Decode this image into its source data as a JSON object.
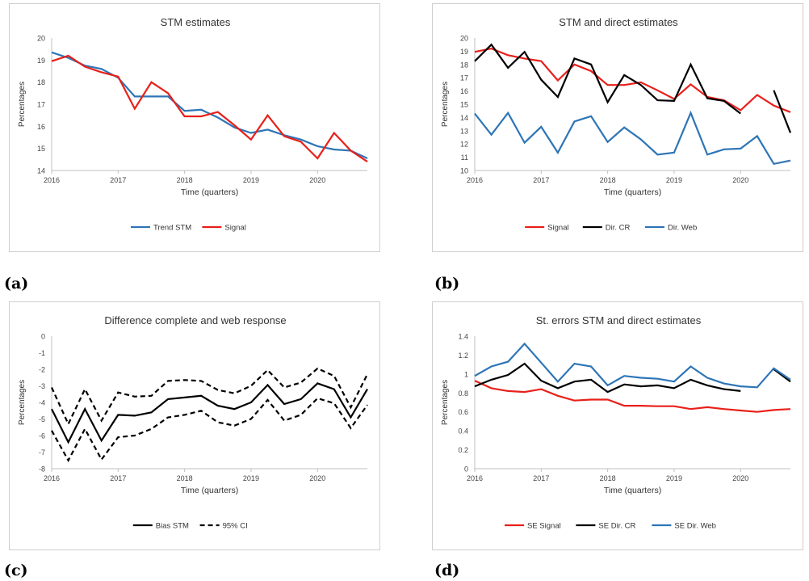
{
  "chart_data": [
    {
      "type": "line",
      "title": "STM estimates",
      "xlabel": "Time (quarters)",
      "ylabel": "Percentages",
      "ylim": [
        14,
        20
      ],
      "yticks": [
        14,
        15,
        16,
        17,
        18,
        19,
        20
      ],
      "xtick_labels": [
        "2016",
        "2017",
        "2018",
        "2019",
        "2020"
      ],
      "x": [
        2016,
        2016.25,
        2016.5,
        2016.75,
        2017,
        2017.25,
        2017.5,
        2017.75,
        2018,
        2018.25,
        2018.5,
        2018.75,
        2019,
        2019.25,
        2019.5,
        2019.75,
        2020,
        2020.25,
        2020.5,
        2020.75
      ],
      "legend_position": "bottom",
      "series": [
        {
          "name": "Trend STM",
          "color": "#2e75b6",
          "dash": "",
          "values": [
            19.35,
            19.1,
            18.75,
            18.6,
            18.2,
            17.35,
            17.35,
            17.35,
            16.7,
            16.75,
            16.4,
            15.95,
            15.7,
            15.85,
            15.6,
            15.4,
            15.1,
            14.95,
            14.9,
            14.55
          ]
        },
        {
          "name": "Signal",
          "color": "#e8201a",
          "dash": "",
          "values": [
            18.95,
            19.2,
            18.7,
            18.45,
            18.25,
            16.8,
            18.0,
            17.5,
            16.45,
            16.45,
            16.65,
            16.05,
            15.4,
            16.5,
            15.55,
            15.3,
            14.55,
            15.7,
            14.9,
            14.4
          ]
        }
      ]
    },
    {
      "type": "line",
      "title": "STM and direct estimates",
      "xlabel": "Time (quarters)",
      "ylabel": "Percentages",
      "ylim": [
        10,
        20
      ],
      "yticks": [
        10,
        11,
        12,
        13,
        14,
        15,
        16,
        17,
        18,
        19,
        20
      ],
      "xtick_labels": [
        "2016",
        "2017",
        "2018",
        "2019",
        "2020"
      ],
      "x": [
        2016,
        2016.25,
        2016.5,
        2016.75,
        2017,
        2017.25,
        2017.5,
        2017.75,
        2018,
        2018.25,
        2018.5,
        2018.75,
        2019,
        2019.25,
        2019.5,
        2019.75,
        2020,
        2020.25,
        2020.5,
        2020.75
      ],
      "legend_position": "bottom",
      "series": [
        {
          "name": "Signal",
          "color": "#e8201a",
          "dash": "",
          "values": [
            18.95,
            19.2,
            18.7,
            18.45,
            18.25,
            16.8,
            18.0,
            17.5,
            16.45,
            16.45,
            16.65,
            16.05,
            15.4,
            16.5,
            15.55,
            15.3,
            14.55,
            15.7,
            14.9,
            14.4
          ]
        },
        {
          "name": "Dir. CR",
          "color": "#000000",
          "dash": "",
          "values": [
            18.25,
            19.5,
            17.75,
            18.95,
            16.85,
            15.55,
            18.45,
            18.0,
            15.15,
            17.2,
            16.45,
            15.3,
            15.25,
            18.0,
            15.45,
            15.25,
            14.3,
            null,
            16.05,
            12.85
          ]
        },
        {
          "name": "Dir. Web",
          "color": "#2e75b6",
          "dash": "",
          "values": [
            14.3,
            12.7,
            14.35,
            12.1,
            13.3,
            11.35,
            13.7,
            14.1,
            12.15,
            13.25,
            12.35,
            11.2,
            11.35,
            14.35,
            11.2,
            11.6,
            11.65,
            12.6,
            10.5,
            10.75
          ]
        }
      ]
    },
    {
      "type": "line",
      "title": "Difference complete and web response",
      "xlabel": "Time (quarters)",
      "ylabel": "Percentages",
      "ylim": [
        -8,
        0
      ],
      "yticks": [
        -8,
        -7,
        -6,
        -5,
        -4,
        -3,
        -2,
        -1,
        0
      ],
      "xtick_labels": [
        "2016",
        "2017",
        "2018",
        "2019",
        "2020"
      ],
      "x": [
        2016,
        2016.25,
        2016.5,
        2016.75,
        2017,
        2017.25,
        2017.5,
        2017.75,
        2018,
        2018.25,
        2018.5,
        2018.75,
        2019,
        2019.25,
        2019.5,
        2019.75,
        2020,
        2020.25,
        2020.5,
        2020.75
      ],
      "legend_position": "bottom",
      "series": [
        {
          "name": "Bias STM",
          "color": "#000000",
          "dash": "",
          "values": [
            -4.4,
            -6.4,
            -4.4,
            -6.3,
            -4.75,
            -4.8,
            -4.6,
            -3.8,
            -3.7,
            -3.6,
            -4.2,
            -4.4,
            -4.0,
            -2.95,
            -4.1,
            -3.8,
            -2.85,
            -3.2,
            -4.9,
            -3.2
          ]
        },
        {
          "name": "95% CI",
          "color": "#000000",
          "dash": "6,4",
          "values": [
            -3.1,
            -5.3,
            -3.2,
            -5.1,
            -3.4,
            -3.65,
            -3.6,
            -2.7,
            -2.65,
            -2.7,
            -3.25,
            -3.45,
            -3.0,
            -2.05,
            -3.1,
            -2.8,
            -1.95,
            -2.4,
            -4.3,
            -2.3
          ]
        },
        {
          "name": "",
          "color": "#000000",
          "dash": "6,4",
          "values": [
            -5.7,
            -7.5,
            -5.6,
            -7.45,
            -6.1,
            -6.0,
            -5.6,
            -4.9,
            -4.75,
            -4.5,
            -5.2,
            -5.4,
            -5.0,
            -3.85,
            -5.1,
            -4.75,
            -3.75,
            -4.05,
            -5.55,
            -4.15
          ]
        }
      ]
    },
    {
      "type": "line",
      "title": "St. errors STM and direct estimates",
      "xlabel": "Time (quarters)",
      "ylabel": "Percentages",
      "ylim": [
        0,
        1.4
      ],
      "yticks": [
        0,
        0.2,
        0.4,
        0.6,
        0.8,
        1,
        1.2,
        1.4
      ],
      "xtick_labels": [
        "2016",
        "2017",
        "2018",
        "2019",
        "2020"
      ],
      "x": [
        2016,
        2016.25,
        2016.5,
        2016.75,
        2017,
        2017.25,
        2017.5,
        2017.75,
        2018,
        2018.25,
        2018.5,
        2018.75,
        2019,
        2019.25,
        2019.5,
        2019.75,
        2020,
        2020.25,
        2020.5,
        2020.75
      ],
      "legend_position": "bottom",
      "series": [
        {
          "name": "SE Signal",
          "color": "#e8201a",
          "dash": "",
          "values": [
            0.93,
            0.85,
            0.82,
            0.81,
            0.84,
            0.77,
            0.72,
            0.73,
            0.73,
            0.665,
            0.665,
            0.66,
            0.66,
            0.63,
            0.65,
            0.63,
            0.615,
            0.6,
            0.62,
            0.63
          ]
        },
        {
          "name": "SE Dir. CR",
          "color": "#000000",
          "dash": "",
          "values": [
            0.87,
            0.94,
            0.99,
            1.11,
            0.93,
            0.85,
            0.92,
            0.94,
            0.81,
            0.89,
            0.87,
            0.88,
            0.85,
            0.94,
            0.88,
            0.84,
            0.82,
            null,
            1.05,
            0.92
          ]
        },
        {
          "name": "SE Dir. Web",
          "color": "#2e75b6",
          "dash": "",
          "values": [
            0.98,
            1.08,
            1.13,
            1.32,
            1.12,
            0.92,
            1.11,
            1.08,
            0.88,
            0.98,
            0.96,
            0.95,
            0.92,
            1.08,
            0.96,
            0.9,
            0.87,
            0.86,
            1.06,
            0.94
          ]
        }
      ]
    }
  ],
  "panel_labels": [
    "(a)",
    "(b)",
    "(c)",
    "(d)"
  ]
}
